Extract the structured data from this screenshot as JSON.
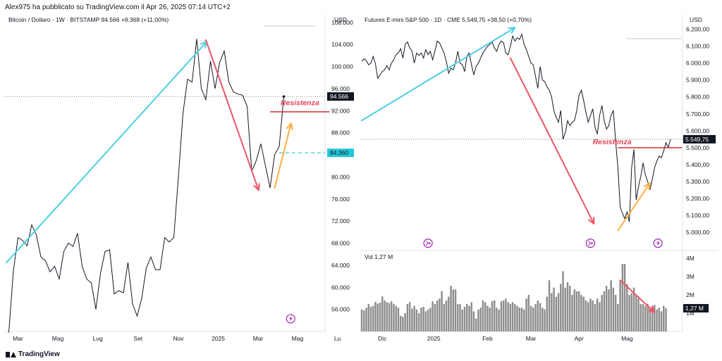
{
  "header": {
    "publisher_line": "Alex975 ha pubblicato su TradingView.com il Apr 26, 2025 07:14 UTC+2"
  },
  "footer": {
    "brand": "TradingView"
  },
  "chart_data": [
    {
      "type": "line",
      "title": "Bitcoin / Dollaro · 1W · BITSTAMP",
      "last_value_text": "94.566",
      "change_text": "+9.368 (+11,00%)",
      "currency": "USD",
      "ylim": [
        52000,
        109500
      ],
      "y_ticks": [
        56000,
        60000,
        64000,
        68000,
        72000,
        76000,
        80000,
        84000,
        88000,
        92000,
        96000,
        100000,
        104000,
        108000
      ],
      "y_tick_labels": [
        "56.000",
        "60.000",
        "64.000",
        "68.000",
        "72.000",
        "76.000",
        "80.000",
        "84.000",
        "88.000",
        "92.000",
        "96.000",
        "100.000",
        "104.000",
        "108.000"
      ],
      "x_labels": [
        {
          "label": "Mar",
          "week": 2
        },
        {
          "label": "Mag",
          "week": 10.7
        },
        {
          "label": "Lug",
          "week": 19.4
        },
        {
          "label": "Set",
          "week": 28.2
        },
        {
          "label": "Nov",
          "week": 37
        },
        {
          "label": "2025",
          "week": 45.7
        },
        {
          "label": "Mar",
          "week": 54.4
        },
        {
          "label": "Mag",
          "week": 63
        },
        {
          "label": "Lu",
          "week": 71.7
        }
      ],
      "series": [
        {
          "values": [
            51800,
            63000,
            69000,
            68500,
            67500,
            71300,
            69500,
            65500,
            64800,
            62800,
            63800,
            61500,
            66500,
            68000,
            67400,
            69800,
            63800,
            61500,
            60800,
            56000,
            62500,
            66500,
            66800,
            58800,
            59400,
            59000,
            64500,
            57000,
            54800,
            58000,
            63500,
            65500,
            63200,
            63200,
            69000,
            68200,
            69000,
            80000,
            91500,
            97700,
            97200,
            105000,
            96000,
            94000,
            101000,
            96000,
            100700,
            102800,
            97200,
            95400,
            95000,
            94800,
            92800,
            81000,
            83000,
            86000,
            82000,
            78000,
            84000,
            85500,
            94566
          ]
        }
      ],
      "price_labels": [
        {
          "value": 94566,
          "text": "94.566",
          "style": "last"
        },
        {
          "value": 84360,
          "text": "84.360",
          "style": "level"
        }
      ],
      "level_lines": [
        {
          "value": 94566,
          "style": "dotted-last"
        },
        {
          "value": 84360,
          "style": "dashed-cyan",
          "from_week": 59
        }
      ],
      "annotations": [
        {
          "kind": "arrow",
          "color": "#4dd0e1",
          "from": [
            -0.5,
            64500
          ],
          "to": [
            43.2,
            104500
          ]
        },
        {
          "kind": "arrow",
          "color": "#ef5468",
          "from": [
            43,
            104800
          ],
          "to": [
            54.5,
            77600
          ]
        },
        {
          "kind": "arrow",
          "color": "#ffae42",
          "from": [
            58,
            78000
          ],
          "to": [
            61.6,
            89700
          ]
        },
        {
          "kind": "line",
          "color": "#d32f2f",
          "from": [
            57,
            91800
          ],
          "to": [
            70,
            91800
          ]
        },
        {
          "kind": "text",
          "color": "#e94057",
          "text": "Resistenza",
          "at": [
            63.5,
            93000
          ]
        },
        {
          "kind": "icon",
          "name": "lightning-icon",
          "at": [
            61.5,
            54300
          ]
        }
      ]
    },
    {
      "type": "line",
      "title": "Futures E-mini S&P 500 · 1D · CME",
      "last_value_text": "5.549,75",
      "change_text": "+38,50 (+0,70%)",
      "currency": "USD",
      "ylim": [
        4900,
        6290
      ],
      "y_ticks": [
        5000,
        5100,
        5200,
        5300,
        5400,
        5500,
        5600,
        5700,
        5800,
        5900,
        6000,
        6100,
        6200
      ],
      "y_tick_labels": [
        "5.000,00",
        "5.100,00",
        "5.200,00",
        "5.300,00",
        "5.400,00",
        "5.500,00",
        "5.600,00",
        "5.700,00",
        "5.800,00",
        "5.900,00",
        "6.000,00",
        "6.100,00",
        "6.200,00"
      ],
      "x_labels": [
        {
          "label": "Dic",
          "day": 9
        },
        {
          "label": "2025",
          "day": 31.5
        },
        {
          "label": "Feb",
          "day": 55
        },
        {
          "label": "Mar",
          "day": 74
        },
        {
          "label": "Apr",
          "day": 95
        },
        {
          "label": "Mag",
          "day": 116
        }
      ],
      "series": [
        {
          "values": [
            6010,
            6025,
            6015,
            5990,
            6000,
            6040,
            5995,
            5910,
            5930,
            5950,
            5960,
            5985,
            5960,
            6000,
            6020,
            6050,
            6060,
            6085,
            6030,
            6110,
            6125,
            6090,
            6070,
            6000,
            6060,
            6045,
            6060,
            6030,
            6080,
            6050,
            6070,
            6020,
            6070,
            6130,
            6120,
            6090,
            6060,
            6010,
            5940,
            5970,
            5960,
            6000,
            6070,
            6000,
            5990,
            5950,
            6040,
            6060,
            5990,
            5930,
            5980,
            6000,
            6030,
            6060,
            6080,
            6100,
            6110,
            6125,
            6090,
            6070,
            6110,
            6130,
            6120,
            6060,
            6050,
            6100,
            6160,
            6130,
            6150,
            6140,
            6170,
            6110,
            6080,
            6040,
            6000,
            5990,
            5920,
            5850,
            5980,
            5900,
            5890,
            5860,
            5840,
            5800,
            5720,
            5680,
            5650,
            5720,
            5550,
            5590,
            5660,
            5630,
            5650,
            5660,
            5720,
            5810,
            5840,
            5780,
            5710,
            5650,
            5690,
            5730,
            5620,
            5580,
            5690,
            5750,
            5660,
            5610,
            5630,
            5690,
            5720,
            5540,
            5380,
            5150,
            5110,
            5080,
            5120,
            5060,
            5380,
            5490,
            5190,
            5270,
            5330,
            5410,
            5340,
            5300,
            5250,
            5310,
            5380,
            5420,
            5450,
            5440,
            5480,
            5530,
            5500,
            5550
          ]
        }
      ],
      "volume": {
        "label": "Vol",
        "value_text": "1,27 M",
        "ylim": [
          0,
          4200000
        ],
        "y_ticks": [
          1000000,
          2000000,
          3000000,
          4000000
        ],
        "y_tick_labels": [
          "1M",
          "2M",
          "3M",
          "4M"
        ],
        "values": [
          1200000,
          1150000,
          1300000,
          1500000,
          1350000,
          1400000,
          1620000,
          1520000,
          1580000,
          1920000,
          1700000,
          1600000,
          1550000,
          1650000,
          1500000,
          1400000,
          1300000,
          850000,
          800000,
          1000000,
          1500000,
          1600000,
          1250000,
          1400000,
          1200000,
          1000000,
          1300000,
          1350000,
          1100000,
          1200000,
          1300000,
          1650000,
          1500000,
          1700000,
          1800000,
          2200000,
          1500000,
          1700000,
          1900000,
          2500000,
          2300000,
          2300000,
          1500000,
          1500000,
          1200000,
          1350000,
          1500000,
          1400000,
          1600000,
          1100000,
          700000,
          1200000,
          1300000,
          1700000,
          1600000,
          1400000,
          1300000,
          1650000,
          1700000,
          1300000,
          1200000,
          1650000,
          1700000,
          1800000,
          1600000,
          1500000,
          1600000,
          1500000,
          1400000,
          1300000,
          1300000,
          1200000,
          1800000,
          2000000,
          1400000,
          1300000,
          1500000,
          1700000,
          1550000,
          1300000,
          1200000,
          1900000,
          2800000,
          2100000,
          2400000,
          1900000,
          2100000,
          2600000,
          3300000,
          2400000,
          2700000,
          2500000,
          2000000,
          2300000,
          2200000,
          2200000,
          2000000,
          1900000,
          1700000,
          1600000,
          1800000,
          1700000,
          1500000,
          1800000,
          1600000,
          2000000,
          2200000,
          2500000,
          2300000,
          2800000,
          2400000,
          2000000,
          1500000,
          2800000,
          3700000,
          3700000,
          2600000,
          2000000,
          2100000,
          2400000,
          2000000,
          1800000,
          1500000,
          1500000,
          1400000,
          1500000,
          1300000,
          1400000,
          1450000,
          1200000,
          1300000,
          1100000,
          1400000,
          1270000
        ]
      },
      "price_labels": [
        {
          "value": 5549.75,
          "text": "5.549,75",
          "style": "last"
        }
      ],
      "volume_labels": [
        {
          "value": 1270000,
          "text": "1,27 M"
        }
      ],
      "level_lines": [
        {
          "value": 5549.75,
          "style": "dotted-last"
        }
      ],
      "annotations": [
        {
          "kind": "arrow",
          "color": "#4dd0e1",
          "from": [
            0,
            5660
          ],
          "to": [
            67,
            6210
          ]
        },
        {
          "kind": "arrow",
          "color": "#ef5468",
          "from": [
            65,
            6030
          ],
          "to": [
            101.5,
            5050
          ]
        },
        {
          "kind": "arrow",
          "color": "#ffae42",
          "from": [
            112,
            5010
          ],
          "to": [
            126,
            5290
          ]
        },
        {
          "kind": "line",
          "color": "#d32f2f",
          "from": [
            112,
            5500
          ],
          "to": [
            140,
            5500
          ]
        },
        {
          "kind": "text",
          "color": "#e94057",
          "text": "Resistenza",
          "at": [
            101,
            5520
          ]
        },
        {
          "kind": "vol-arrow",
          "color": "#ef5468",
          "from": [
            113,
            2800000
          ],
          "to": [
            128,
            1050000
          ]
        },
        {
          "kind": "icon",
          "name": "split-icon",
          "at": [
            29,
            4935
          ]
        },
        {
          "kind": "icon",
          "name": "split-icon",
          "at": [
            100,
            4935
          ]
        },
        {
          "kind": "icon",
          "name": "lightning-icon",
          "at": [
            129.5,
            4935
          ]
        }
      ]
    }
  ]
}
